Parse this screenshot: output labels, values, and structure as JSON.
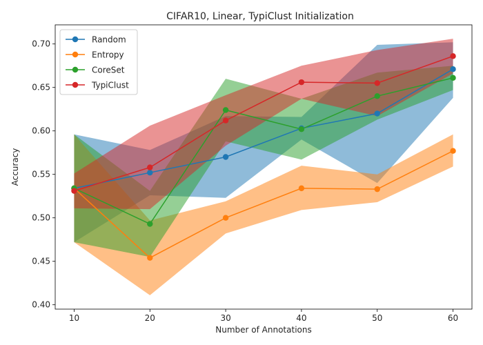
{
  "chart_data": {
    "type": "line",
    "title": "CIFAR10, Linear, TypiClust Initialization",
    "xlabel": "Number of Annotations",
    "ylabel": "Accuracy",
    "x": [
      10,
      20,
      30,
      40,
      50,
      60
    ],
    "xlim": [
      7.5,
      62.5
    ],
    "ylim": [
      0.395,
      0.722
    ],
    "xticks": [
      "10",
      "20",
      "30",
      "40",
      "50",
      "60"
    ],
    "yticks": [
      "0.40",
      "0.45",
      "0.50",
      "0.55",
      "0.60",
      "0.65",
      "0.70"
    ],
    "legend_position": "upper-left",
    "grid": false,
    "series": [
      {
        "name": "Random",
        "color": "#1f77b4",
        "values": [
          0.534,
          0.552,
          0.57,
          0.603,
          0.62,
          0.671
        ],
        "upper": [
          0.596,
          0.578,
          0.617,
          0.616,
          0.699,
          0.702
        ],
        "lower": [
          0.472,
          0.526,
          0.523,
          0.59,
          0.54,
          0.638
        ]
      },
      {
        "name": "Entropy",
        "color": "#ff7f0e",
        "values": [
          0.534,
          0.454,
          0.5,
          0.534,
          0.533,
          0.577
        ],
        "upper": [
          0.596,
          0.497,
          0.519,
          0.56,
          0.55,
          0.596
        ],
        "lower": [
          0.472,
          0.411,
          0.482,
          0.509,
          0.518,
          0.559
        ]
      },
      {
        "name": "CoreSet",
        "color": "#2ca02c",
        "values": [
          0.534,
          0.493,
          0.624,
          0.602,
          0.64,
          0.661
        ],
        "upper": [
          0.596,
          0.531,
          0.66,
          0.637,
          0.667,
          0.675
        ],
        "lower": [
          0.472,
          0.455,
          0.588,
          0.567,
          0.613,
          0.647
        ]
      },
      {
        "name": "TypiClust",
        "color": "#d62728",
        "values": [
          0.531,
          0.558,
          0.612,
          0.656,
          0.655,
          0.686
        ],
        "upper": [
          0.551,
          0.606,
          0.641,
          0.675,
          0.693,
          0.706
        ],
        "lower": [
          0.511,
          0.51,
          0.583,
          0.637,
          0.617,
          0.666
        ]
      }
    ]
  }
}
